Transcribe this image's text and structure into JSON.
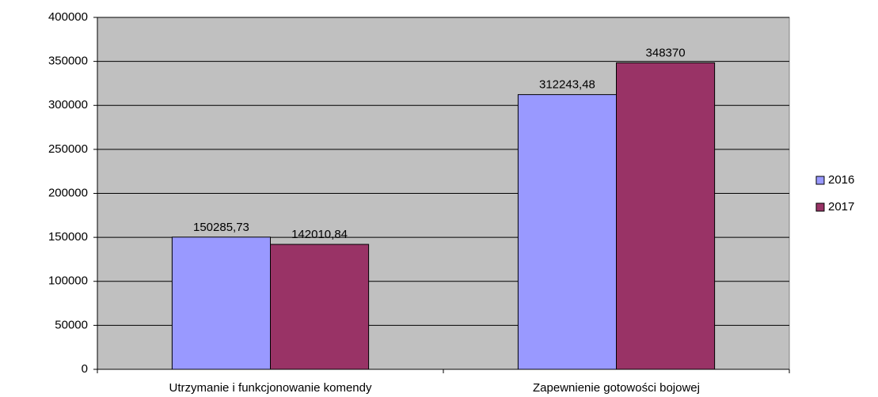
{
  "chart_data": {
    "type": "bar",
    "categories": [
      "Utrzymanie i funkcjonowanie komendy",
      "Zapewnienie gotowości bojowej"
    ],
    "series": [
      {
        "name": "2016",
        "color": "#9999ff",
        "values": [
          150285.73,
          312243.48
        ],
        "value_labels": [
          "150285,73",
          "312243,48"
        ]
      },
      {
        "name": "2017",
        "color": "#993366",
        "values": [
          142010.84,
          348370
        ],
        "value_labels": [
          "142010,84",
          "348370"
        ]
      }
    ],
    "ylim": [
      0,
      400000
    ],
    "yticks": [
      0,
      50000,
      100000,
      150000,
      200000,
      250000,
      300000,
      350000,
      400000
    ],
    "grid": true,
    "legend": "right",
    "plot_background": "#c0c0c0"
  }
}
